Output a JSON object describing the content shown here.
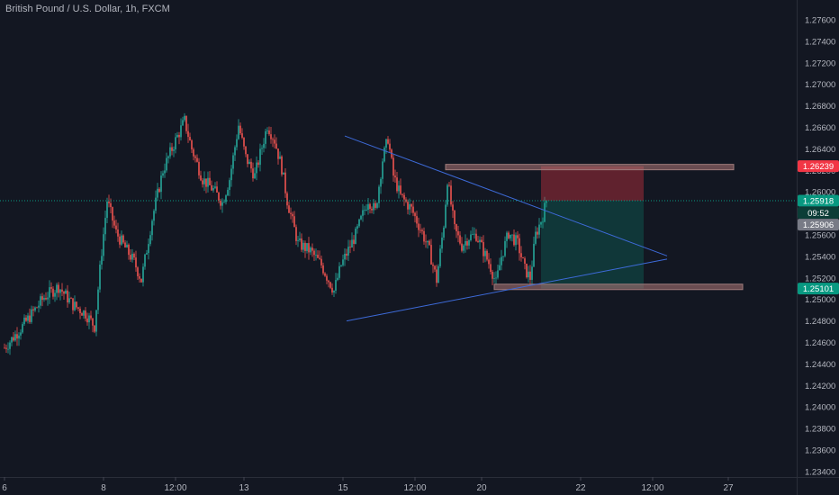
{
  "chart_data": {
    "type": "candlestick",
    "title": "British Pound / U.S. Dollar, 1h, FXCM",
    "y_ticks": [
      1.276,
      1.274,
      1.272,
      1.27,
      1.268,
      1.266,
      1.264,
      1.262,
      1.26,
      1.258,
      1.256,
      1.254,
      1.252,
      1.25,
      1.248,
      1.246,
      1.244,
      1.242,
      1.24,
      1.238,
      1.236,
      1.234
    ],
    "y_tick_labels": [
      "1.27600",
      "1.27400",
      "1.27200",
      "1.27000",
      "1.26800",
      "1.26600",
      "1.26400",
      "1.26200",
      "1.26000",
      "1.25800",
      "1.25600",
      "1.25400",
      "1.25200",
      "1.25000",
      "1.24800",
      "1.24600",
      "1.24400",
      "1.24200",
      "1.24000",
      "1.23800",
      "1.23600",
      "1.23400"
    ],
    "x_ticks": [
      {
        "label": "6",
        "index": 0
      },
      {
        "label": "8",
        "index": 55
      },
      {
        "label": "12:00",
        "index": 95
      },
      {
        "label": "13",
        "index": 133
      },
      {
        "label": "15",
        "index": 188
      },
      {
        "label": "12:00",
        "index": 228
      },
      {
        "label": "20",
        "index": 265
      },
      {
        "label": "22",
        "index": 320
      },
      {
        "label": "12:00",
        "index": 360
      },
      {
        "label": "27",
        "index": 402
      }
    ],
    "price_badges": [
      {
        "value": "1.26239",
        "price": 1.26239,
        "color": "#f23645",
        "text_color": "#ffffff"
      },
      {
        "value": "1.25918",
        "price": 1.25918,
        "color": "#089981",
        "text_color": "#ffffff"
      },
      {
        "value": "09:52",
        "price": 1.25805,
        "color": "#0c3d37",
        "text_color": "#ffffff"
      },
      {
        "value": "1.25906",
        "price": 1.25695,
        "color": "#787b86",
        "text_color": "#ffffff"
      },
      {
        "value": "1.25101",
        "price": 1.25101,
        "color": "#089981",
        "text_color": "#ffffff"
      }
    ],
    "current_price": 1.25918,
    "up_color": "#26a69a",
    "down_color": "#ef5350",
    "price_path": [
      [
        0,
        1.2455
      ],
      [
        10,
        1.2475
      ],
      [
        22,
        1.2502
      ],
      [
        30,
        1.2512
      ],
      [
        38,
        1.2495
      ],
      [
        45,
        1.2487
      ],
      [
        50,
        1.2475
      ],
      [
        54,
        1.2545
      ],
      [
        57,
        1.2592
      ],
      [
        62,
        1.2562
      ],
      [
        67,
        1.2548
      ],
      [
        72,
        1.2535
      ],
      [
        76,
        1.2518
      ],
      [
        82,
        1.2575
      ],
      [
        88,
        1.262
      ],
      [
        95,
        1.2648
      ],
      [
        100,
        1.2666
      ],
      [
        104,
        1.264
      ],
      [
        110,
        1.2612
      ],
      [
        116,
        1.2602
      ],
      [
        121,
        1.259
      ],
      [
        125,
        1.2612
      ],
      [
        130,
        1.2662
      ],
      [
        134,
        1.2632
      ],
      [
        139,
        1.2615
      ],
      [
        146,
        1.2662
      ],
      [
        150,
        1.2648
      ],
      [
        154,
        1.2622
      ],
      [
        157,
        1.2592
      ],
      [
        163,
        1.2552
      ],
      [
        170,
        1.2545
      ],
      [
        176,
        1.2532
      ],
      [
        180,
        1.2518
      ],
      [
        183,
        1.2508
      ],
      [
        187,
        1.2532
      ],
      [
        195,
        1.256
      ],
      [
        202,
        1.2593
      ],
      [
        206,
        1.2582
      ],
      [
        210,
        1.263
      ],
      [
        213,
        1.265
      ],
      [
        216,
        1.2615
      ],
      [
        220,
        1.2596
      ],
      [
        226,
        1.2584
      ],
      [
        232,
        1.2562
      ],
      [
        236,
        1.2545
      ],
      [
        240,
        1.2518
      ],
      [
        244,
        1.257
      ],
      [
        246,
        1.2612
      ],
      [
        250,
        1.2565
      ],
      [
        254,
        1.255
      ],
      [
        258,
        1.2558
      ],
      [
        262,
        1.256
      ],
      [
        266,
        1.2545
      ],
      [
        270,
        1.253
      ],
      [
        273,
        1.2515
      ],
      [
        276,
        1.254
      ],
      [
        280,
        1.2562
      ],
      [
        285,
        1.2552
      ],
      [
        289,
        1.2528
      ],
      [
        292,
        1.252
      ],
      [
        295,
        1.256
      ],
      [
        299,
        1.2578
      ],
      [
        301,
        1.25918
      ]
    ],
    "drawings": {
      "triangle_upper": {
        "from": [
          189,
          1.2652
        ],
        "to": [
          368,
          1.25405
        ]
      },
      "triangle_lower": {
        "from": [
          190,
          1.248
        ],
        "to": [
          368,
          1.25375
        ]
      },
      "resistance_zone": {
        "from_index": 245,
        "to_index": 405,
        "top": 1.26239,
        "bottom": 1.26205
      },
      "support_zone": {
        "from_index": 272,
        "to_index": 410,
        "top": 1.25125,
        "bottom": 1.25092
      },
      "short_position": {
        "from_index": 298,
        "to_index": 355,
        "stop": 1.26239,
        "entry": 1.25918,
        "target": 1.25101
      }
    }
  }
}
